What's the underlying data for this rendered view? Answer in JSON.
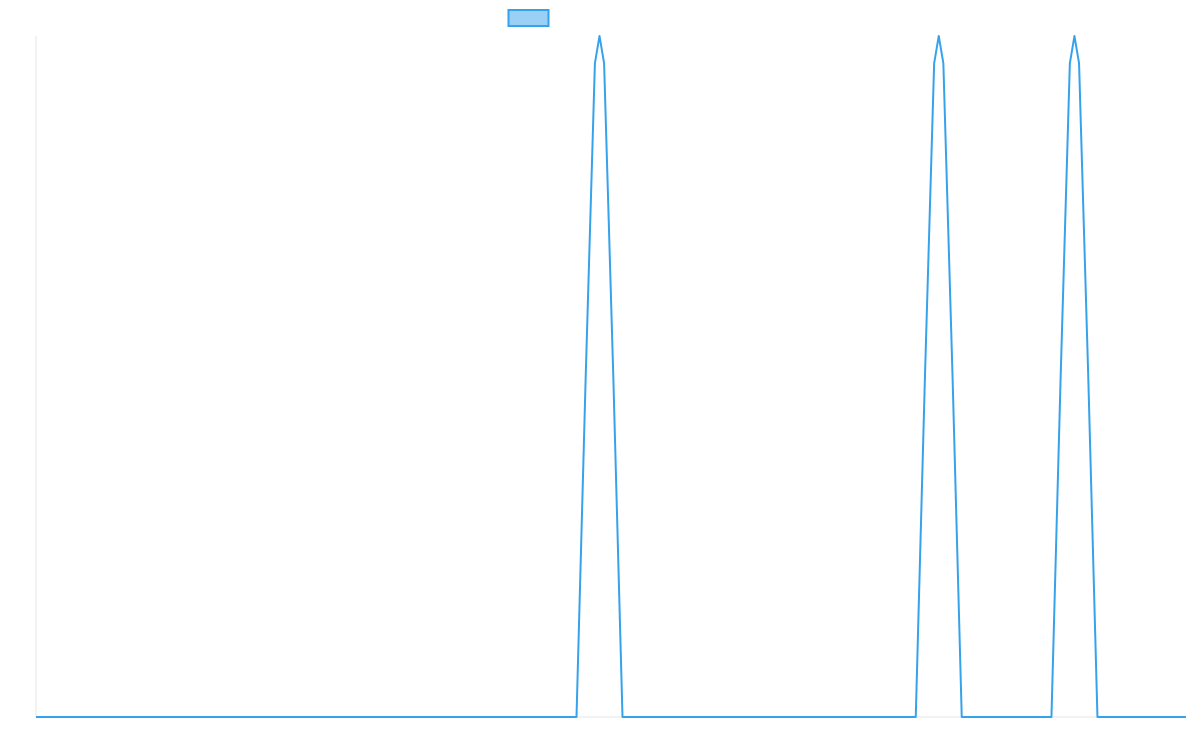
{
  "chart_data": {
    "type": "line",
    "title": "",
    "xlabel": "",
    "ylabel": "",
    "legend": {
      "position": "top-center",
      "entries": [
        {
          "name": "",
          "color": "#36a2eb",
          "fill": "#9ad0f5"
        }
      ]
    },
    "grid": false,
    "xlim": [
      0,
      100
    ],
    "ylim": [
      0,
      1
    ],
    "series": [
      {
        "name": "",
        "color": "#36a2eb",
        "x": [
          0,
          47.0,
          47.8,
          48.6,
          49.0,
          49.4,
          50.2,
          51.0,
          76.5,
          77.3,
          78.1,
          78.5,
          78.9,
          79.7,
          80.5,
          88.3,
          89.1,
          89.9,
          90.3,
          90.7,
          91.5,
          92.3,
          100
        ],
        "values": [
          0,
          0,
          0.5,
          0.96,
          1.0,
          0.96,
          0.5,
          0,
          0,
          0.5,
          0.96,
          1.0,
          0.96,
          0.5,
          0,
          0,
          0.5,
          0.96,
          1.0,
          0.96,
          0.5,
          0,
          0
        ]
      }
    ]
  }
}
